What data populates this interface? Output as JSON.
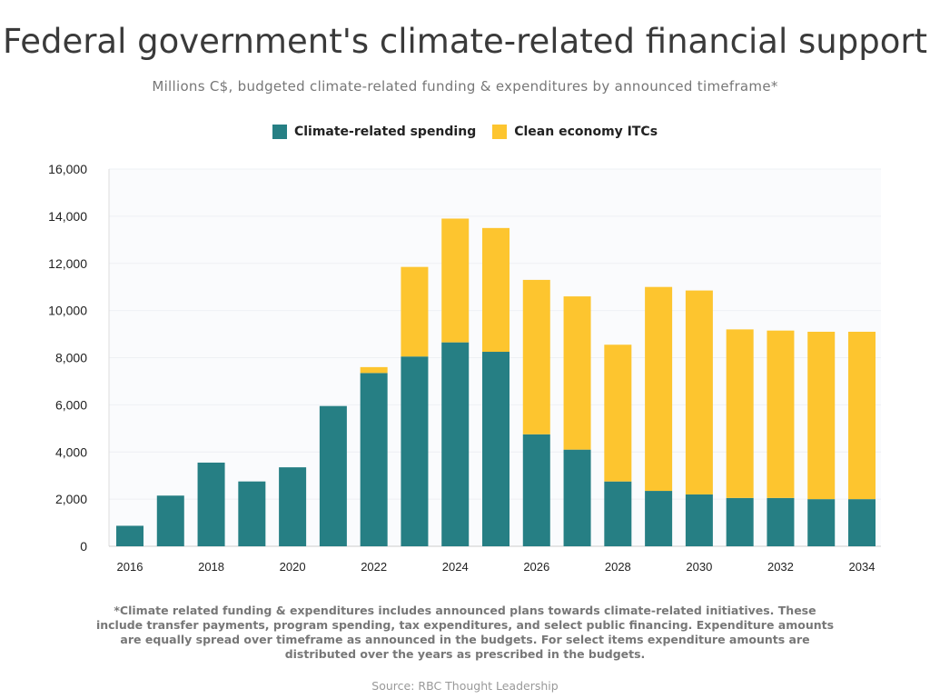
{
  "title": "Federal government's climate-related financial support",
  "subtitle": "Millions C$, budgeted climate-related funding & expenditures by announced timeframe*",
  "footnote": "*Climate related funding & expenditures includes announced plans towards climate-related initiatives. These include transfer payments, program spending, tax expenditures, and select public financing. Expenditure amounts are equally spread over timeframe as announced in the budgets. For select items expenditure amounts are distributed over the years as prescribed in the budgets.",
  "source": "Source: RBC Thought Leadership",
  "chart_data": {
    "type": "bar",
    "stacked": true,
    "title": "Federal government's climate-related financial support",
    "xlabel": "",
    "ylabel": "Millions C$",
    "ylim": [
      0,
      16000
    ],
    "yticks": [
      0,
      2000,
      4000,
      6000,
      8000,
      10000,
      12000,
      14000,
      16000
    ],
    "ytick_labels": [
      "0",
      "2,000",
      "4,000",
      "6,000",
      "8,000",
      "10,000",
      "12,000",
      "14,000",
      "16,000"
    ],
    "xtick_labels": [
      "2016",
      "2018",
      "2020",
      "2022",
      "2024",
      "2026",
      "2028",
      "2030",
      "2032",
      "2034"
    ],
    "categories": [
      "2016",
      "2017",
      "2018",
      "2019",
      "2020",
      "2021",
      "2022",
      "2023",
      "2024",
      "2025",
      "2026",
      "2027",
      "2028",
      "2029",
      "2030",
      "2031",
      "2032",
      "2033",
      "2034"
    ],
    "legend_position": "top-center",
    "series": [
      {
        "name": "Climate-related spending",
        "color": "#267f84",
        "values": [
          870,
          2150,
          3550,
          2750,
          3350,
          5950,
          7350,
          8050,
          8650,
          8250,
          4750,
          4100,
          2750,
          2350,
          2200,
          2050,
          2050,
          2000,
          2000
        ]
      },
      {
        "name": "Clean economy ITCs",
        "color": "#fdc52f",
        "values": [
          0,
          0,
          0,
          0,
          0,
          0,
          250,
          3800,
          5250,
          5250,
          6550,
          6500,
          5800,
          8650,
          8650,
          7150,
          7100,
          7100,
          7100
        ]
      }
    ]
  }
}
